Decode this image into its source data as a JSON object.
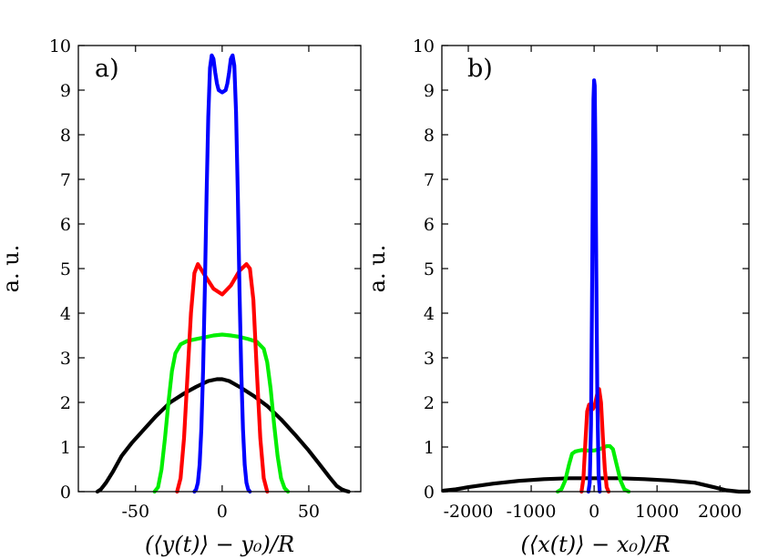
{
  "chart_data": [
    {
      "type": "line",
      "panel_label": "a)",
      "ylabel": "a. u.",
      "xlabel": "(⟨y(t)⟩ − y₀)/R",
      "xlim": [
        -83,
        80
      ],
      "ylim": [
        0,
        10
      ],
      "xticks": [
        -50,
        0,
        50
      ],
      "xtick_labels": [
        "-50",
        "0",
        "50"
      ],
      "yticks": [
        0,
        1,
        2,
        3,
        4,
        5,
        6,
        7,
        8,
        9,
        10
      ],
      "ytick_labels": [
        "0",
        "1",
        "2",
        "3",
        "4",
        "5",
        "6",
        "7",
        "8",
        "9",
        "10"
      ],
      "series": [
        {
          "name": "black",
          "color": "#000000",
          "x": [
            -72,
            -70,
            -67,
            -63,
            -58,
            -52,
            -45,
            -38,
            -30,
            -22,
            -15,
            -8,
            -3,
            0,
            4,
            10,
            18,
            26,
            34,
            42,
            50,
            56,
            62,
            66,
            69,
            71,
            73
          ],
          "y": [
            0,
            0.05,
            0.2,
            0.45,
            0.8,
            1.1,
            1.4,
            1.7,
            2.0,
            2.2,
            2.35,
            2.48,
            2.52,
            2.52,
            2.48,
            2.35,
            2.15,
            1.92,
            1.62,
            1.28,
            0.92,
            0.62,
            0.32,
            0.13,
            0.05,
            0.02,
            0
          ]
        },
        {
          "name": "green",
          "color": "#00ee00",
          "x": [
            -39,
            -37,
            -35,
            -33,
            -31,
            -29,
            -27,
            -24,
            -20,
            -15,
            -10,
            -5,
            0,
            5,
            10,
            15,
            20,
            24,
            26,
            28,
            30,
            32,
            34,
            36,
            38
          ],
          "y": [
            0,
            0.1,
            0.5,
            1.2,
            2.0,
            2.7,
            3.1,
            3.3,
            3.38,
            3.42,
            3.46,
            3.5,
            3.52,
            3.5,
            3.47,
            3.42,
            3.36,
            3.2,
            2.9,
            2.3,
            1.5,
            0.8,
            0.3,
            0.08,
            0
          ]
        },
        {
          "name": "red",
          "color": "#ff0000",
          "x": [
            -26,
            -24,
            -22,
            -20,
            -18,
            -16,
            -14,
            -10,
            -5,
            0,
            5,
            10,
            14,
            16,
            18,
            20,
            22,
            24,
            26
          ],
          "y": [
            0,
            0.3,
            1.2,
            2.6,
            4.0,
            4.9,
            5.1,
            4.85,
            4.55,
            4.42,
            4.62,
            4.95,
            5.1,
            5.0,
            4.3,
            2.7,
            1.2,
            0.3,
            0
          ]
        },
        {
          "name": "blue",
          "color": "#0000ff",
          "x": [
            -16,
            -15,
            -14,
            -13,
            -12,
            -11,
            -10,
            -9,
            -8,
            -7,
            -6,
            -5,
            -4,
            -3,
            -2,
            0,
            2,
            3,
            4,
            5,
            6,
            7,
            8,
            9,
            10,
            11,
            12,
            13,
            14,
            15,
            16
          ],
          "y": [
            0,
            0.05,
            0.2,
            0.6,
            1.4,
            2.7,
            4.5,
            6.6,
            8.4,
            9.5,
            9.78,
            9.7,
            9.4,
            9.15,
            9.0,
            8.95,
            9.0,
            9.15,
            9.4,
            9.7,
            9.78,
            9.55,
            8.5,
            6.7,
            4.5,
            2.7,
            1.4,
            0.6,
            0.2,
            0.05,
            0
          ]
        }
      ]
    },
    {
      "type": "line",
      "panel_label": "b)",
      "ylabel": "a. u.",
      "xlabel": "(⟨x(t)⟩ − x₀)/R",
      "xlim": [
        -2420,
        2460
      ],
      "ylim": [
        0,
        10
      ],
      "xticks": [
        -2000,
        -1000,
        0,
        1000,
        2000
      ],
      "xtick_labels": [
        "-2000",
        "-1000",
        "0",
        "1000",
        "2000"
      ],
      "yticks": [
        0,
        1,
        2,
        3,
        4,
        5,
        6,
        7,
        8,
        9,
        10
      ],
      "ytick_labels": [
        "0",
        "1",
        "2",
        "3",
        "4",
        "5",
        "6",
        "7",
        "8",
        "9",
        "10"
      ],
      "series": [
        {
          "name": "black",
          "color": "#000000",
          "x": [
            -2400,
            -2200,
            -2000,
            -1600,
            -1200,
            -800,
            -400,
            0,
            400,
            800,
            1200,
            1600,
            1900,
            2100,
            2300,
            2460
          ],
          "y": [
            0.02,
            0.05,
            0.1,
            0.18,
            0.24,
            0.28,
            0.3,
            0.3,
            0.3,
            0.28,
            0.25,
            0.2,
            0.1,
            0.03,
            0,
            0
          ]
        },
        {
          "name": "green",
          "color": "#00ee00",
          "x": [
            -580,
            -520,
            -460,
            -400,
            -350,
            -300,
            -200,
            -100,
            0,
            100,
            200,
            250,
            300,
            350,
            420,
            480,
            550
          ],
          "y": [
            0,
            0.05,
            0.25,
            0.6,
            0.85,
            0.9,
            0.93,
            0.92,
            0.92,
            0.96,
            1.02,
            1.02,
            0.95,
            0.65,
            0.25,
            0.05,
            0
          ]
        },
        {
          "name": "red",
          "color": "#ff0000",
          "x": [
            -200,
            -170,
            -140,
            -110,
            -80,
            -50,
            -20,
            0,
            20,
            50,
            80,
            110,
            140,
            170,
            200,
            230
          ],
          "y": [
            0,
            0.3,
            1.1,
            1.8,
            1.95,
            1.9,
            1.85,
            1.9,
            2.0,
            2.2,
            2.3,
            2.0,
            1.2,
            0.5,
            0.1,
            0
          ]
        },
        {
          "name": "blue",
          "color": "#0000ff",
          "x": [
            -90,
            -70,
            -50,
            -35,
            -20,
            -10,
            0,
            10,
            20,
            35,
            50,
            70,
            90
          ],
          "y": [
            0,
            0.2,
            1.5,
            4.0,
            7.0,
            8.8,
            9.22,
            9.1,
            7.8,
            5.0,
            2.2,
            0.4,
            0
          ]
        }
      ]
    }
  ]
}
